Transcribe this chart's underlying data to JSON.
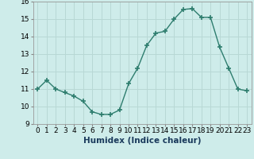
{
  "x": [
    0,
    1,
    2,
    3,
    4,
    5,
    6,
    7,
    8,
    9,
    10,
    11,
    12,
    13,
    14,
    15,
    16,
    17,
    18,
    19,
    20,
    21,
    22,
    23
  ],
  "y": [
    11.0,
    11.5,
    11.0,
    10.8,
    10.6,
    10.3,
    9.7,
    9.55,
    9.55,
    9.8,
    11.3,
    12.2,
    13.5,
    14.2,
    14.3,
    15.0,
    15.55,
    15.6,
    15.1,
    15.1,
    13.4,
    12.2,
    11.0,
    10.9
  ],
  "line_color": "#2e7d6e",
  "marker": "+",
  "marker_size": 4,
  "bg_color": "#ceecea",
  "grid_color": "#b8d8d5",
  "xlabel": "Humidex (Indice chaleur)",
  "ylim": [
    9,
    16
  ],
  "xlim": [
    -0.5,
    23.5
  ],
  "yticks": [
    9,
    10,
    11,
    12,
    13,
    14,
    15,
    16
  ],
  "xticks": [
    0,
    1,
    2,
    3,
    4,
    5,
    6,
    7,
    8,
    9,
    10,
    11,
    12,
    13,
    14,
    15,
    16,
    17,
    18,
    19,
    20,
    21,
    22,
    23
  ],
  "xtick_labels": [
    "0",
    "1",
    "2",
    "3",
    "4",
    "5",
    "6",
    "7",
    "8",
    "9",
    "10",
    "11",
    "12",
    "13",
    "14",
    "15",
    "16",
    "17",
    "18",
    "19",
    "20",
    "21",
    "22",
    "23"
  ],
  "tick_fontsize": 6.5,
  "xlabel_fontsize": 7.5,
  "linewidth": 1.0
}
